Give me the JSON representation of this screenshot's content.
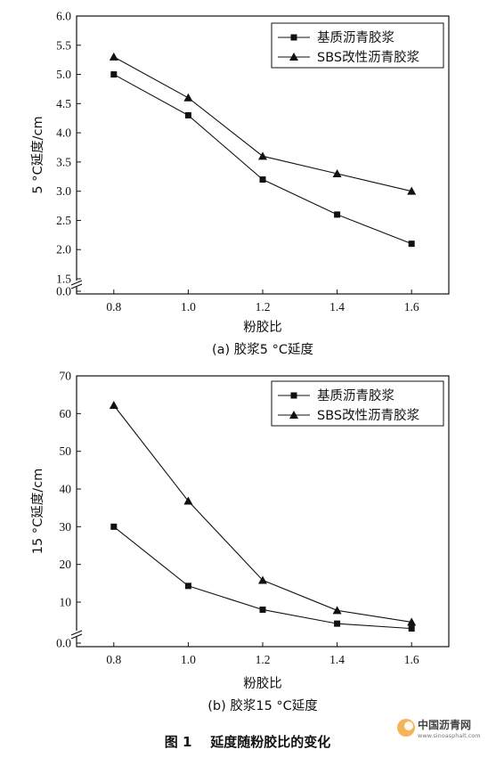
{
  "figure_title": "图 1    延度随粉胶比的变化",
  "watermark": {
    "text": "中国沥青网",
    "url": "www.sinoasphalt.com"
  },
  "chart_data": [
    {
      "type": "line",
      "caption": "(a) 胶浆5 °C延度",
      "xlabel": "粉胶比",
      "ylabel": "5 °C延度/cm",
      "x": [
        0.8,
        1.0,
        1.2,
        1.4,
        1.6
      ],
      "x_tick_labels": [
        "0.8",
        "1.0",
        "1.2",
        "1.4",
        "1.6"
      ],
      "xlim": [
        0.7,
        1.7
      ],
      "y_ticks": [
        1.5,
        2.0,
        2.5,
        3.0,
        3.5,
        4.0,
        4.5,
        5.0,
        5.5,
        6.0
      ],
      "y_tick_labels": [
        "1.5",
        "2.0",
        "2.5",
        "3.0",
        "3.5",
        "4.0",
        "4.5",
        "5.0",
        "5.5",
        "6.0"
      ],
      "y_broken_tick": 0.0,
      "y_broken_label": "0.0",
      "ylim": [
        1.5,
        6.0
      ],
      "legend_position": "top-right",
      "series": [
        {
          "name": "基质沥青胶浆",
          "marker": "square",
          "values": [
            5.0,
            4.3,
            3.2,
            2.6,
            2.1
          ]
        },
        {
          "name": "SBS改性沥青胶浆",
          "marker": "triangle",
          "values": [
            5.3,
            4.6,
            3.6,
            3.3,
            3.0
          ]
        }
      ]
    },
    {
      "type": "line",
      "caption": "(b) 胶浆15 °C延度",
      "xlabel": "粉胶比",
      "ylabel": "15 °C延度/cm",
      "x": [
        0.8,
        1.0,
        1.2,
        1.4,
        1.6
      ],
      "x_tick_labels": [
        "0.8",
        "1.0",
        "1.2",
        "1.4",
        "1.6"
      ],
      "xlim": [
        0.7,
        1.7
      ],
      "y_ticks": [
        10,
        20,
        30,
        40,
        50,
        60,
        70
      ],
      "y_tick_labels": [
        "10",
        "20",
        "30",
        "40",
        "50",
        "60",
        "70"
      ],
      "y_broken_tick": 0.0,
      "y_broken_label": "0.0",
      "ylim": [
        0,
        70
      ],
      "legend_position": "top-right",
      "series": [
        {
          "name": "基质沥青胶浆",
          "marker": "square",
          "values": [
            30,
            14.3,
            8.0,
            4.3,
            3.0
          ]
        },
        {
          "name": "SBS改性沥青胶浆",
          "marker": "triangle",
          "values": [
            62.2,
            36.8,
            15.8,
            7.8,
            4.7
          ]
        }
      ]
    }
  ]
}
